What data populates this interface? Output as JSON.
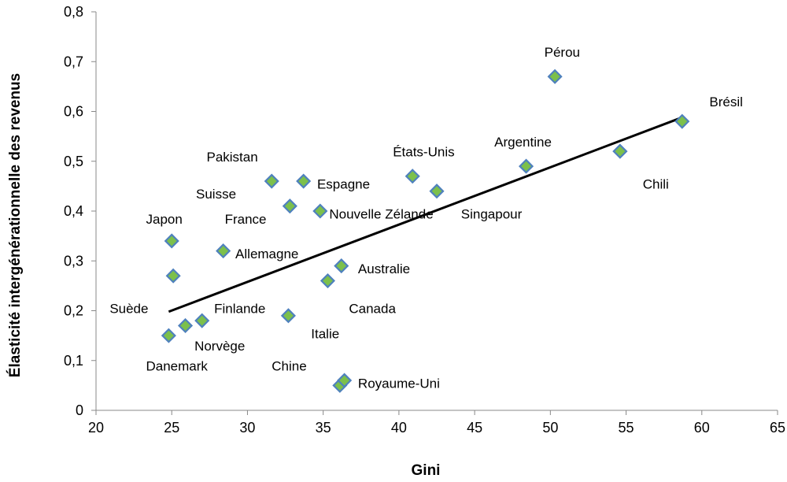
{
  "chart_data": {
    "type": "scatter",
    "xlabel": "Gini",
    "ylabel": "Élasticité intergénérationnelle des revenus",
    "xlim": [
      20,
      65
    ],
    "ylim": [
      0,
      0.8
    ],
    "x_ticks": [
      20,
      25,
      30,
      35,
      40,
      45,
      50,
      55,
      60,
      65
    ],
    "x_tick_labels": [
      "20",
      "25",
      "30",
      "35",
      "40",
      "45",
      "50",
      "55",
      "60",
      "65"
    ],
    "y_ticks": [
      0,
      0.1,
      0.2,
      0.3,
      0.4,
      0.5,
      0.6,
      0.7,
      0.8
    ],
    "y_tick_labels": [
      "0",
      "0,1",
      "0,2",
      "0,3",
      "0,4",
      "0,5",
      "0,6",
      "0,7",
      "0,8"
    ],
    "grid": false,
    "legend": "none",
    "points": [
      {
        "label": "Danemark",
        "x": 24.8,
        "y": 0.15
      },
      {
        "label": "Norvège",
        "x": 25.9,
        "y": 0.17
      },
      {
        "label": "Finlande",
        "x": 27.0,
        "y": 0.18
      },
      {
        "label": "Suède",
        "x": 25.1,
        "y": 0.27
      },
      {
        "label": "Japon",
        "x": 25.0,
        "y": 0.34
      },
      {
        "label": "Allemagne",
        "x": 28.4,
        "y": 0.32
      },
      {
        "label": "Pakistan",
        "x": 31.6,
        "y": 0.46
      },
      {
        "label": "Suisse",
        "x": 32.8,
        "y": 0.41
      },
      {
        "label": "Espagne",
        "x": 33.7,
        "y": 0.46
      },
      {
        "label": "France",
        "x": 34.8,
        "y": 0.4
      },
      {
        "label": "Italie",
        "x": 32.7,
        "y": 0.19
      },
      {
        "label": "Canada",
        "x": 35.3,
        "y": 0.26
      },
      {
        "label": "Australie",
        "x": 36.2,
        "y": 0.29
      },
      {
        "label": "Chine",
        "x": 36.1,
        "y": 0.05
      },
      {
        "label": "Royaume-Uni",
        "x": 36.4,
        "y": 0.06
      },
      {
        "label": "États-Unis",
        "x": 40.9,
        "y": 0.47
      },
      {
        "label": "Nouvelle Zélande",
        "x": 42.5,
        "y": 0.44
      },
      {
        "label": "Singapour",
        "x": 48.4,
        "y": 0.49
      },
      {
        "label": "Argentine",
        "x": 54.6,
        "y": 0.52
      },
      {
        "label": "Pérou",
        "x": 50.3,
        "y": 0.67
      },
      {
        "label": "Chili",
        "x": 54.6,
        "y": 0.52
      },
      {
        "label": "Brésil",
        "x": 58.7,
        "y": 0.58
      }
    ],
    "trendline": {
      "x": [
        24.8,
        58.7
      ],
      "y": [
        0.198,
        0.588
      ]
    },
    "annotations": [
      {
        "text": "Pérou",
        "x": 49.6,
        "y": 0.71
      },
      {
        "text": "Brésil",
        "x": 60.5,
        "y": 0.61
      },
      {
        "text": "Argentine",
        "x": 46.3,
        "y": 0.53
      },
      {
        "text": "Chili",
        "x": 56.1,
        "y": 0.445
      },
      {
        "text": "États-Unis",
        "x": 39.6,
        "y": 0.51
      },
      {
        "text": "Singapour",
        "x": 44.1,
        "y": 0.385
      },
      {
        "text": "Pakistan",
        "x": 27.3,
        "y": 0.5
      },
      {
        "text": "Espagne",
        "x": 34.6,
        "y": 0.445
      },
      {
        "text": "Suisse",
        "x": 26.6,
        "y": 0.425
      },
      {
        "text": "Nouvelle Zélande",
        "x": 35.4,
        "y": 0.385
      },
      {
        "text": "France",
        "x": 28.5,
        "y": 0.375
      },
      {
        "text": "Japon",
        "x": 23.3,
        "y": 0.375
      },
      {
        "text": "Allemagne",
        "x": 29.2,
        "y": 0.305
      },
      {
        "text": "Australie",
        "x": 37.3,
        "y": 0.275
      },
      {
        "text": "Canada",
        "x": 36.7,
        "y": 0.195
      },
      {
        "text": "Suède",
        "x": 20.9,
        "y": 0.195
      },
      {
        "text": "Finlande",
        "x": 27.8,
        "y": 0.195
      },
      {
        "text": "Italie",
        "x": 34.2,
        "y": 0.145
      },
      {
        "text": "Norvège",
        "x": 26.5,
        "y": 0.12
      },
      {
        "text": "Danemark",
        "x": 23.3,
        "y": 0.08
      },
      {
        "text": "Chine",
        "x": 31.6,
        "y": 0.08
      },
      {
        "text": "Royaume-Uni",
        "x": 37.3,
        "y": 0.045
      }
    ]
  }
}
